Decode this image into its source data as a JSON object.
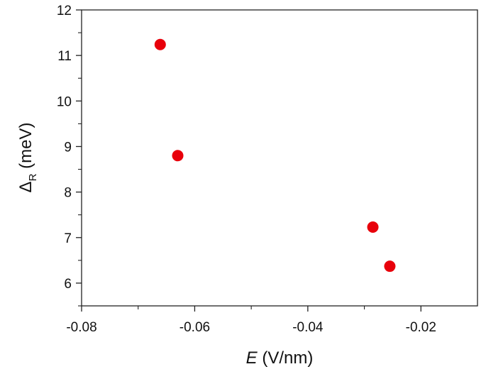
{
  "chart_data": {
    "type": "scatter",
    "title": "",
    "xlabel_var": "E",
    "xlabel_unit": " (V/nm)",
    "ylabel_symbol": "Δ",
    "ylabel_subscript": "R",
    "ylabel_unit": " (meV)",
    "xlim": [
      -0.08,
      -0.01
    ],
    "ylim": [
      5.5,
      12
    ],
    "xticks": [
      -0.08,
      -0.06,
      -0.04,
      -0.02
    ],
    "xtick_labels": [
      "-0.08",
      "-0.06",
      "-0.04",
      "-0.02"
    ],
    "yticks": [
      6,
      7,
      8,
      9,
      10,
      11,
      12
    ],
    "ytick_labels": [
      "6",
      "7",
      "8",
      "9",
      "10",
      "11",
      "12"
    ],
    "grid": false,
    "legend": "none",
    "marker_color": "#e8000b",
    "series": [
      {
        "points": [
          {
            "x": -0.0661,
            "y": 11.24
          },
          {
            "x": -0.063,
            "y": 8.8
          },
          {
            "x": -0.0285,
            "y": 7.23
          },
          {
            "x": -0.0255,
            "y": 6.37
          }
        ]
      }
    ]
  }
}
